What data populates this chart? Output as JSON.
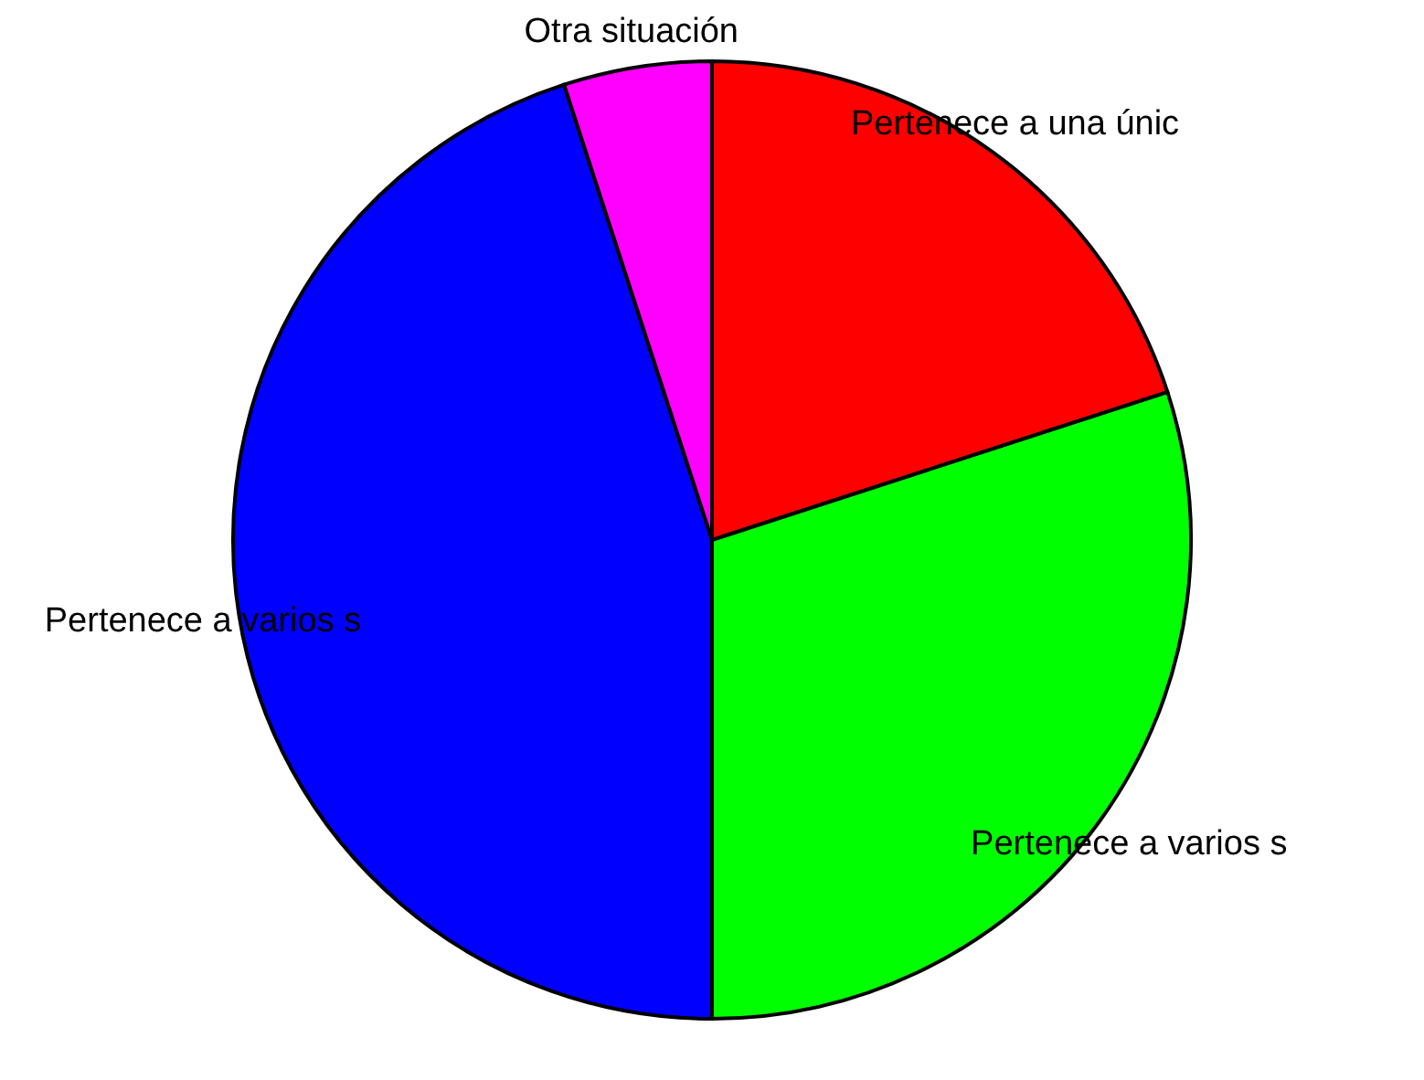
{
  "chart_data": {
    "type": "pie",
    "categories": [
      "Pertenece a una únic",
      "Pertenece a varios s",
      "Pertenece a varios s",
      "Otra situación"
    ],
    "values": [
      20,
      30,
      45,
      5
    ],
    "colors": [
      "#ff0000",
      "#00ff00",
      "#0000ff",
      "#ff00ff"
    ]
  }
}
